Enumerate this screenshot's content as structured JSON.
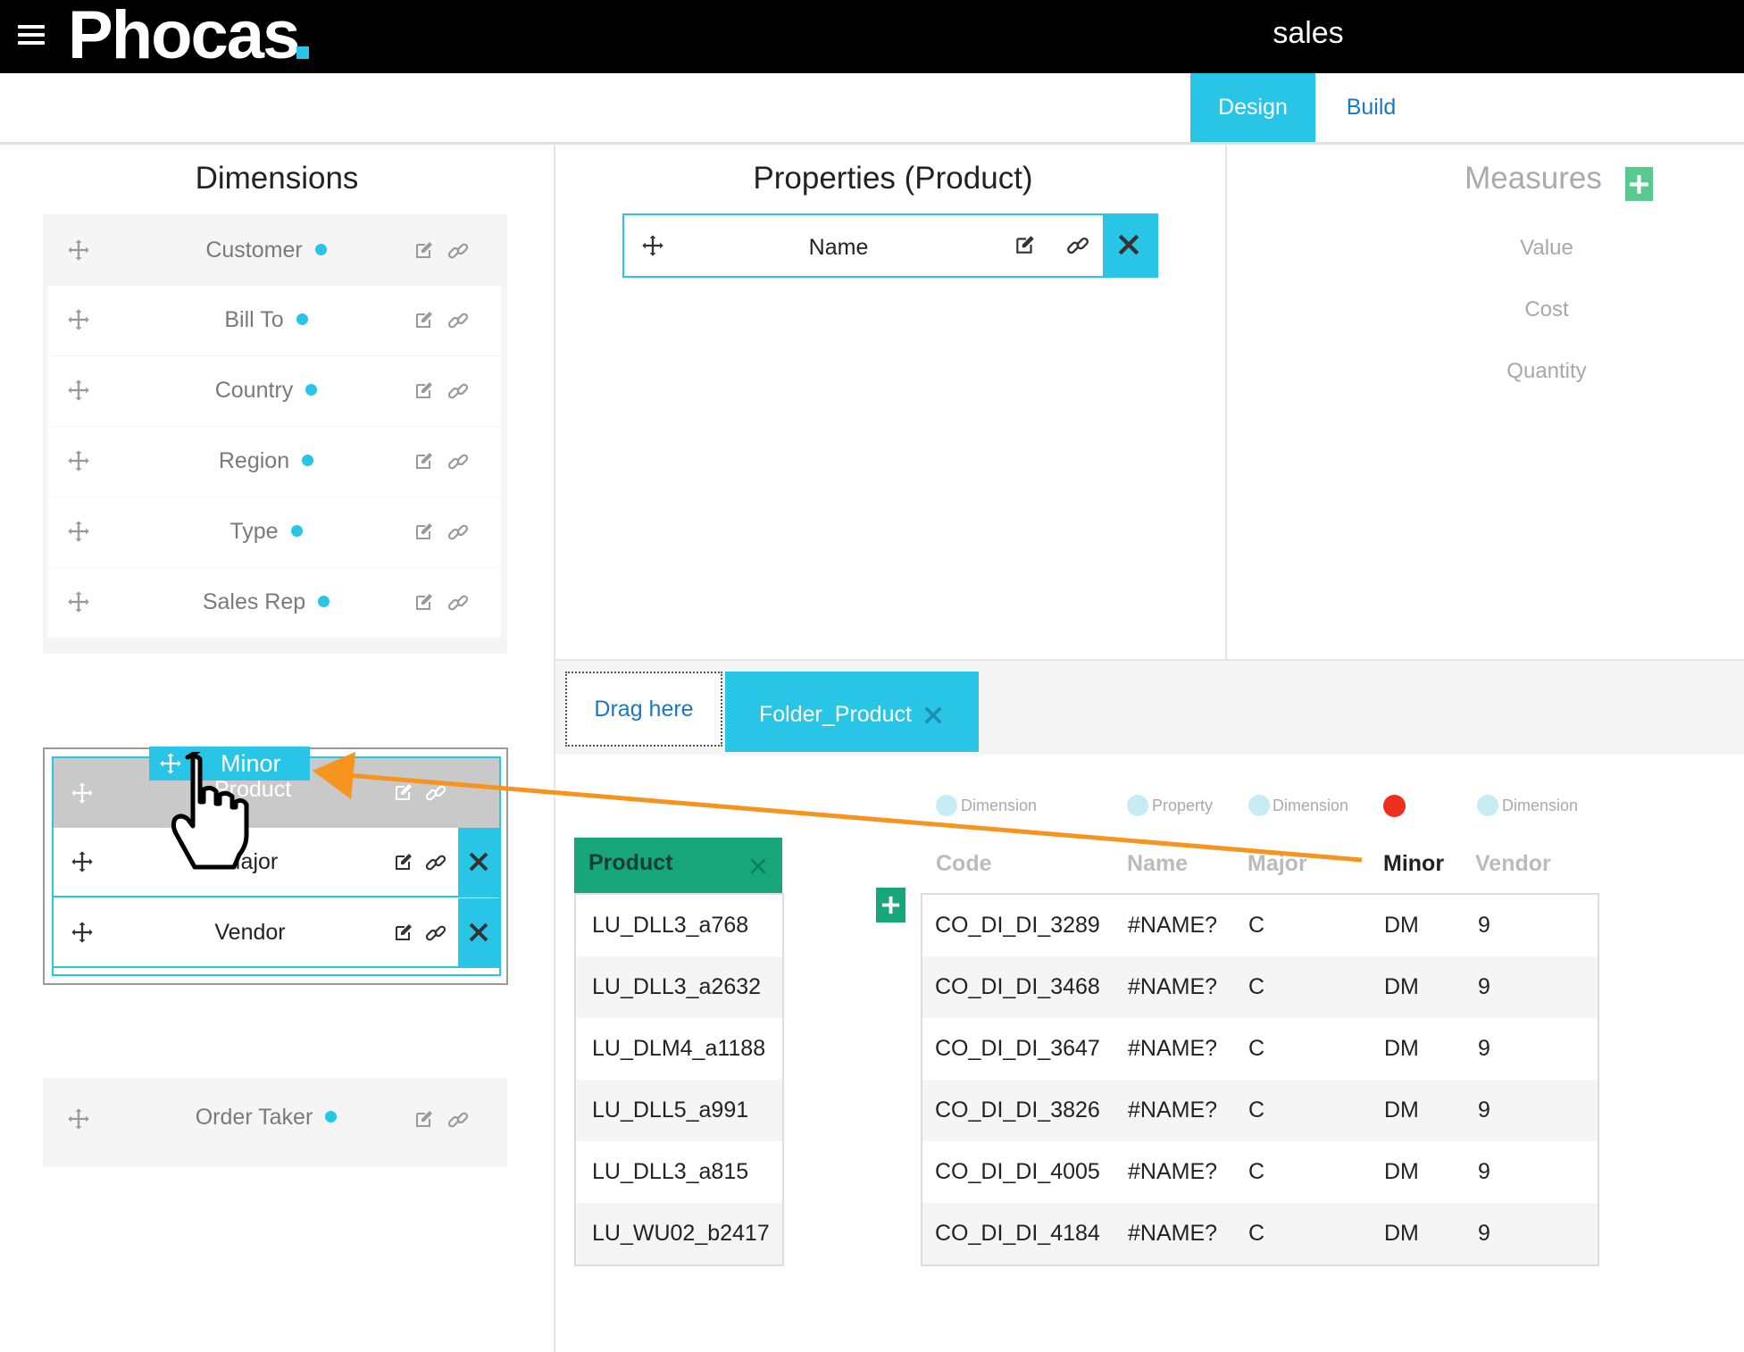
{
  "header": {
    "logo_text": "Phocas",
    "app_title": "sales"
  },
  "tabs": {
    "design": "Design",
    "build": "Build"
  },
  "dimensions_panel": {
    "title": "Dimensions",
    "items": [
      {
        "label": "Customer"
      },
      {
        "label": "Bill To"
      },
      {
        "label": "Country"
      },
      {
        "label": "Region"
      },
      {
        "label": "Type"
      },
      {
        "label": "Sales Rep"
      }
    ],
    "drag_group": {
      "dragged_label": "Minor",
      "ghost_label": "Product",
      "rows": [
        {
          "label": "Major"
        },
        {
          "label": "Vendor"
        }
      ]
    },
    "order_taker": {
      "label": "Order Taker"
    }
  },
  "properties_panel": {
    "title": "Properties (Product)",
    "items": [
      {
        "label": "Name"
      }
    ]
  },
  "measures_panel": {
    "title": "Measures",
    "items": [
      "Value",
      "Cost",
      "Quantity"
    ]
  },
  "folder_bar": {
    "drag_here": "Drag here",
    "folder_label": "Folder_Product"
  },
  "product_column": {
    "header": "Product",
    "values": [
      "LU_DLL3_a768",
      "LU_DLL3_a2632",
      "LU_DLM4_a1188",
      "LU_DLL5_a991",
      "LU_DLL3_a815",
      "LU_WU02_b2417"
    ]
  },
  "grid": {
    "column_types": [
      "Dimension",
      "Property",
      "Dimension",
      "",
      "Dimension"
    ],
    "headers": [
      "Code",
      "Name",
      "Major",
      "Minor",
      "Vendor"
    ],
    "rows": [
      [
        "CO_DI_DI_3289",
        "#NAME?",
        "C",
        "DM",
        "9"
      ],
      [
        "CO_DI_DI_3468",
        "#NAME?",
        "C",
        "DM",
        "9"
      ],
      [
        "CO_DI_DI_3647",
        "#NAME?",
        "C",
        "DM",
        "9"
      ],
      [
        "CO_DI_DI_3826",
        "#NAME?",
        "C",
        "DM",
        "9"
      ],
      [
        "CO_DI_DI_4005",
        "#NAME?",
        "C",
        "DM",
        "9"
      ],
      [
        "CO_DI_DI_4184",
        "#NAME?",
        "C",
        "DM",
        "9"
      ]
    ]
  },
  "colors": {
    "accent": "#29c5e6",
    "green": "#16a67a",
    "arrow": "#f7941d",
    "red_dot": "#ee2e1e"
  }
}
